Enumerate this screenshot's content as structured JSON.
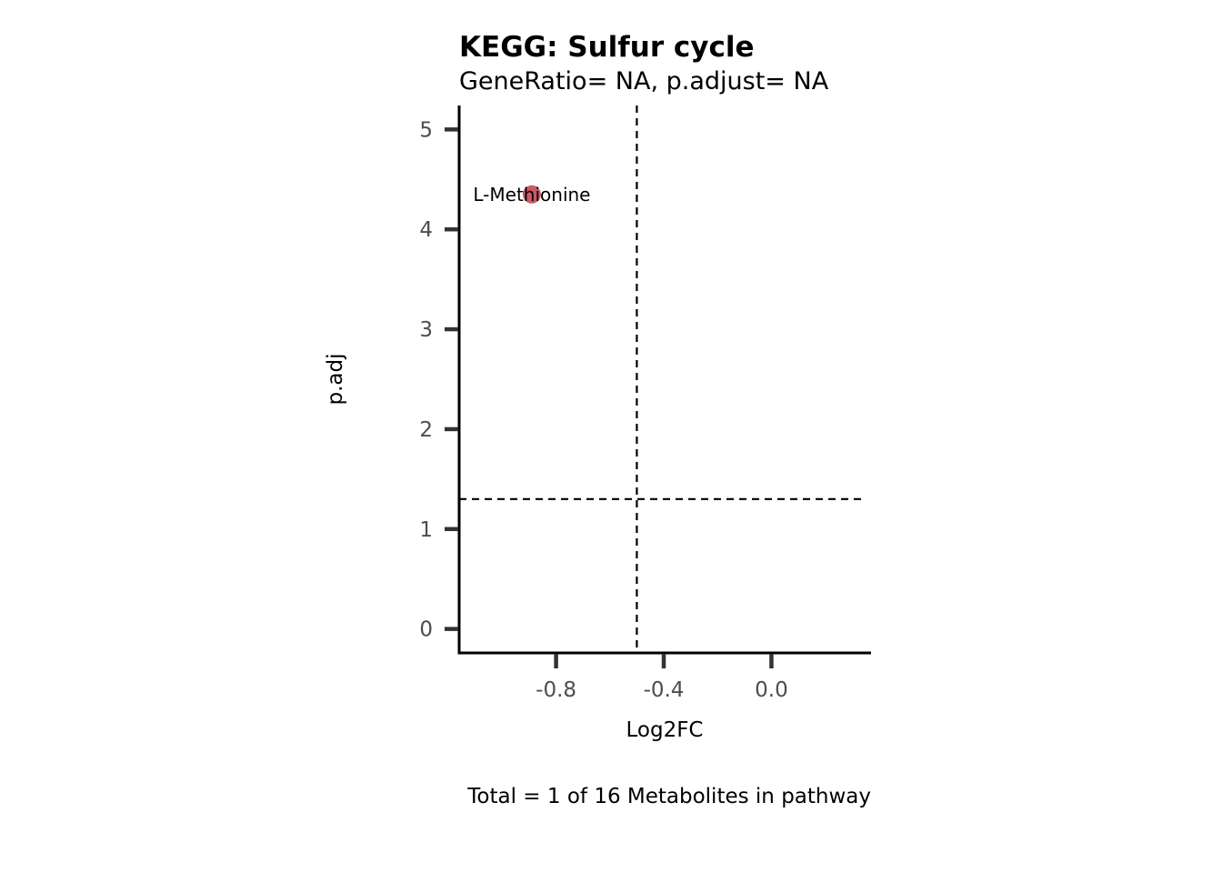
{
  "chart_data": {
    "type": "scatter",
    "title": "KEGG: Sulfur cycle",
    "subtitle": "GeneRatio= NA, p.adjust= NA",
    "xlabel": "Log2FC",
    "ylabel": "p.adj",
    "caption": "Total = 1 of 16 Metabolites in pathway",
    "xlim": [
      -1.16,
      0.37
    ],
    "ylim": [
      -0.24,
      5.24
    ],
    "x_ticks": [
      -0.8,
      -0.4,
      0.0
    ],
    "x_tick_labels": [
      "-0.8",
      "-0.4",
      "0.0"
    ],
    "y_ticks": [
      0,
      1,
      2,
      3,
      4,
      5
    ],
    "y_tick_labels": [
      "0",
      "1",
      "2",
      "3",
      "4",
      "5"
    ],
    "reference_lines": {
      "vertical_x": -0.5,
      "horizontal_y": 1.3,
      "style": "dashed"
    },
    "points": [
      {
        "label": "L-Methionine",
        "x": -0.89,
        "y": 4.35,
        "color": "#c85a69"
      }
    ],
    "grid": false
  }
}
